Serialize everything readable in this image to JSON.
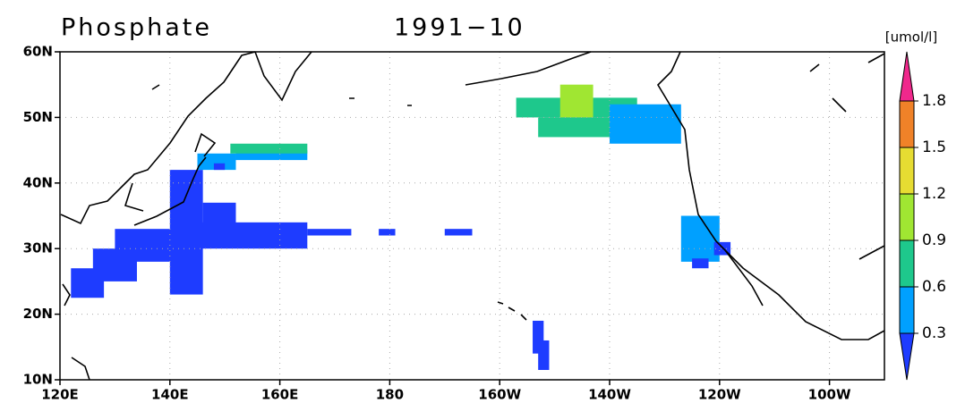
{
  "chart_data": {
    "type": "map",
    "title": "Phosphate",
    "subtitle": "1991−10",
    "xlim": [
      120,
      270
    ],
    "ylim": [
      10,
      60
    ],
    "xticks": [
      {
        "value": 120,
        "label": "120E"
      },
      {
        "value": 140,
        "label": "140E"
      },
      {
        "value": 160,
        "label": "160E"
      },
      180,
      {
        "value": 200,
        "label": "160W"
      },
      {
        "value": 220,
        "label": "140W"
      },
      {
        "value": 240,
        "label": "120W"
      },
      {
        "value": 260,
        "label": "100W"
      }
    ],
    "yticks": [
      {
        "value": 10,
        "label": "10N"
      },
      {
        "value": 20,
        "label": "20N"
      },
      {
        "value": 30,
        "label": "30N"
      },
      {
        "value": 40,
        "label": "40N"
      },
      {
        "value": 50,
        "label": "50N"
      },
      {
        "value": 60,
        "label": "60N"
      }
    ],
    "grid": true,
    "colorbar": {
      "label": "[umol/l]",
      "levels": [
        0.3,
        0.6,
        0.9,
        1.2,
        1.5,
        1.8
      ],
      "colors": [
        "#1e3cff",
        "#00a0ff",
        "#1ec88c",
        "#a0e632",
        "#e6dc32",
        "#f08228",
        "#f0288c"
      ]
    },
    "cells": [
      [
        122,
        22.5,
        128,
        27,
        0.2
      ],
      [
        126,
        25,
        134,
        30,
        0.2
      ],
      [
        130,
        28,
        142,
        33,
        0.2
      ],
      [
        140,
        23,
        146,
        42,
        0.2
      ],
      [
        144,
        30,
        165,
        34,
        0.2
      ],
      [
        146,
        31,
        152,
        37,
        0.2
      ],
      [
        165,
        32,
        173,
        33,
        0.2
      ],
      [
        178,
        32,
        181,
        33,
        0.2
      ],
      [
        190,
        32,
        195,
        33,
        0.2
      ],
      [
        206,
        14,
        208,
        19,
        0.2
      ],
      [
        207,
        11.5,
        209,
        16,
        0.2
      ],
      [
        145,
        42,
        152,
        44.5,
        0.45
      ],
      [
        152,
        43.5,
        165,
        45,
        0.45
      ],
      [
        148,
        42,
        150,
        43,
        0.2
      ],
      [
        151,
        44.5,
        165,
        46,
        0.7
      ],
      [
        203,
        50,
        225,
        53,
        0.7
      ],
      [
        207,
        47,
        220,
        50,
        0.7
      ],
      [
        220,
        46,
        233,
        52,
        0.45
      ],
      [
        211,
        50,
        217,
        55,
        1.0
      ],
      [
        233,
        28,
        240,
        35,
        0.45
      ],
      [
        239,
        29,
        242,
        31,
        0.2
      ],
      [
        235,
        27,
        238,
        28.5,
        0.2
      ]
    ]
  }
}
